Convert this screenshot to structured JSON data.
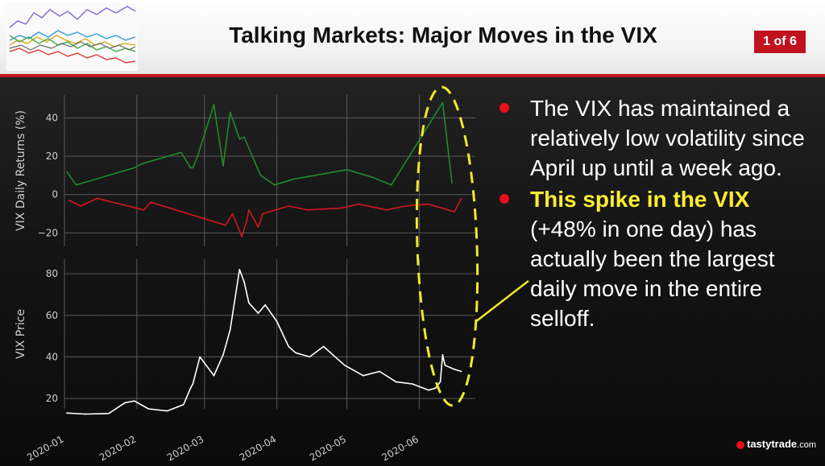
{
  "header": {
    "title": "Talking Markets: Major Moves in the VIX",
    "badge": "1 of 6"
  },
  "bullets": [
    {
      "highlight": "",
      "text": "The VIX has maintained a relatively low volatility since April up until a week ago."
    },
    {
      "highlight": "This spike in the VIX",
      "text": "(+48% in one day) has actually been the largest daily move in the entire selloff."
    }
  ],
  "brand": {
    "name": "tastytrade",
    "suffix": ".com",
    "icon": "cherry-icon"
  },
  "colors": {
    "accent": "#c0111f",
    "highlight": "#ffee33",
    "up": "#1f8a2a",
    "down": "#d2161f",
    "price": "#ffffff",
    "ellipse": "#f0ea2a"
  },
  "chart_data": [
    {
      "type": "line",
      "ylabel": "VIX Daily Returns (%)",
      "xlabel": "",
      "ylim": [
        -27,
        52
      ],
      "yticks": [
        -20,
        0,
        20,
        40
      ],
      "grid": true,
      "series": [
        {
          "color": "#1f8a2a",
          "x": [
            "2020-01-02",
            "2020-01-06",
            "2020-01-31",
            "2020-02-03",
            "2020-02-20",
            "2020-02-24",
            "2020-02-25",
            "2020-02-27",
            "2020-03-05",
            "2020-03-09",
            "2020-03-12",
            "2020-03-16",
            "2020-03-18",
            "2020-03-25",
            "2020-03-31",
            "2020-04-08",
            "2020-05-01",
            "2020-05-12",
            "2020-05-20",
            "2020-06-11",
            "2020-06-15"
          ],
          "values": [
            12,
            5,
            14,
            16,
            22,
            14,
            14,
            20,
            47,
            15,
            43,
            29,
            30,
            10,
            5,
            8,
            13,
            9,
            5,
            48,
            6
          ]
        },
        {
          "color": "#d2161f",
          "x": [
            "2020-01-03",
            "2020-01-08",
            "2020-01-15",
            "2020-02-04",
            "2020-02-07",
            "2020-03-10",
            "2020-03-13",
            "2020-03-17",
            "2020-03-19",
            "2020-03-20",
            "2020-03-24",
            "2020-03-26",
            "2020-04-06",
            "2020-04-14",
            "2020-04-29",
            "2020-05-06",
            "2020-05-18",
            "2020-05-26",
            "2020-06-05",
            "2020-06-16",
            "2020-06-19"
          ],
          "values": [
            -3,
            -6,
            -2,
            -8,
            -4,
            -16,
            -10,
            -22,
            -14,
            -8,
            -17,
            -10,
            -6,
            -8,
            -7,
            -5,
            -8,
            -6,
            -5,
            -9,
            -2
          ]
        }
      ]
    },
    {
      "type": "line",
      "ylabel": "VIX Price",
      "xlabel": "",
      "ylim": [
        15,
        87
      ],
      "yticks": [
        20,
        40,
        60,
        80
      ],
      "grid": true,
      "x_ticks": [
        "2020-01",
        "2020-02",
        "2020-03",
        "2020-04",
        "2020-05",
        "2020-06"
      ],
      "series": [
        {
          "color": "#ffffff",
          "x": [
            "2020-01-02",
            "2020-01-10",
            "2020-01-20",
            "2020-01-27",
            "2020-01-31",
            "2020-02-06",
            "2020-02-14",
            "2020-02-21",
            "2020-02-24",
            "2020-02-25",
            "2020-02-28",
            "2020-03-05",
            "2020-03-09",
            "2020-03-12",
            "2020-03-16",
            "2020-03-18",
            "2020-03-20",
            "2020-03-24",
            "2020-03-27",
            "2020-04-01",
            "2020-04-06",
            "2020-04-09",
            "2020-04-15",
            "2020-04-21",
            "2020-04-30",
            "2020-05-08",
            "2020-05-15",
            "2020-05-22",
            "2020-05-29",
            "2020-06-05",
            "2020-06-08",
            "2020-06-10",
            "2020-06-11",
            "2020-06-12",
            "2020-06-16",
            "2020-06-19"
          ],
          "values": [
            13,
            12.5,
            12.8,
            18,
            18.8,
            15,
            14,
            17,
            25,
            27,
            40,
            31,
            41,
            53,
            82,
            76,
            66,
            61,
            65,
            57,
            45,
            42,
            40,
            45,
            36,
            31,
            33,
            28,
            27,
            24,
            25,
            28,
            41,
            36,
            34,
            33
          ]
        }
      ]
    }
  ]
}
